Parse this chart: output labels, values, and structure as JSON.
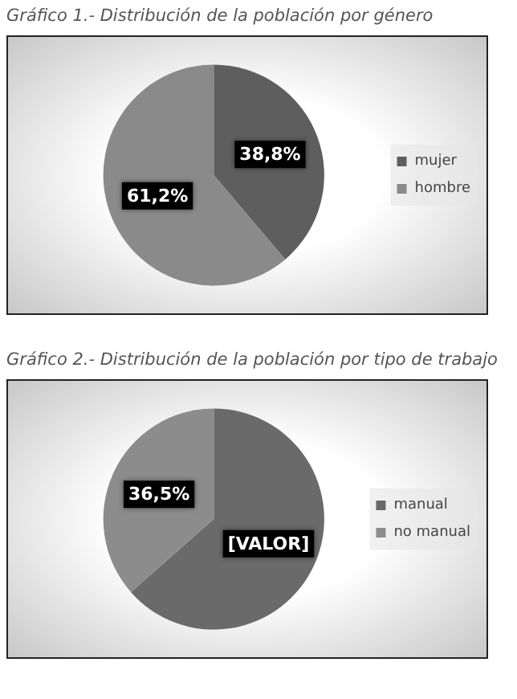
{
  "chart_data": [
    {
      "type": "pie",
      "title": "Gráfico 1.- Distribución de la población por género",
      "categories": [
        "mujer",
        "hombre"
      ],
      "values": [
        38.8,
        61.2
      ],
      "colors": [
        "#5e5e5e",
        "#8a8a8a"
      ],
      "value_labels": [
        "38,8%",
        "61,2%"
      ],
      "legend": "right"
    },
    {
      "type": "pie",
      "title": "Gráfico 2.- Distribución de la población por tipo de trabajo",
      "categories": [
        "manual",
        "no manual"
      ],
      "values": [
        63.5,
        36.5
      ],
      "colors": [
        "#6a6a6a",
        "#8c8c8c"
      ],
      "value_labels": [
        "[VALOR]",
        "36,5%"
      ],
      "legend": "right"
    }
  ]
}
